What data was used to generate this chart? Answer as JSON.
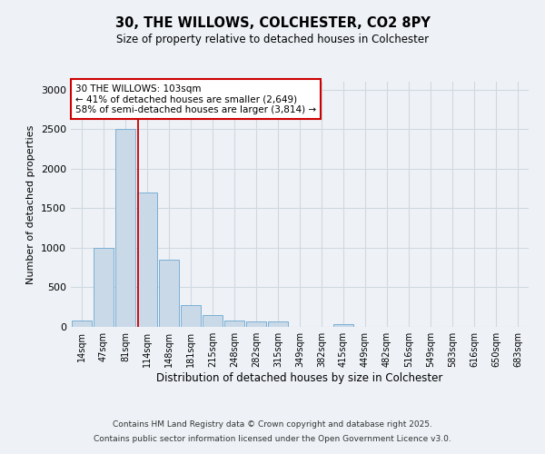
{
  "title_line1": "30, THE WILLOWS, COLCHESTER, CO2 8PY",
  "title_line2": "Size of property relative to detached houses in Colchester",
  "xlabel": "Distribution of detached houses by size in Colchester",
  "ylabel": "Number of detached properties",
  "categories": [
    "14sqm",
    "47sqm",
    "81sqm",
    "114sqm",
    "148sqm",
    "181sqm",
    "215sqm",
    "248sqm",
    "282sqm",
    "315sqm",
    "349sqm",
    "382sqm",
    "415sqm",
    "449sqm",
    "482sqm",
    "516sqm",
    "549sqm",
    "583sqm",
    "616sqm",
    "650sqm",
    "683sqm"
  ],
  "values": [
    75,
    1000,
    2500,
    1700,
    850,
    275,
    150,
    80,
    65,
    65,
    0,
    0,
    30,
    0,
    0,
    0,
    0,
    0,
    0,
    0,
    0
  ],
  "bar_color": "#c9d9e8",
  "bar_edge_color": "#7bafd4",
  "grid_color": "#d0d8e0",
  "background_color": "#eef2f7",
  "red_line_x": 2.58,
  "annotation_text": "30 THE WILLOWS: 103sqm\n← 41% of detached houses are smaller (2,649)\n58% of semi-detached houses are larger (3,814) →",
  "annotation_box_color": "#ffffff",
  "annotation_box_edgecolor": "#cc0000",
  "footer_line1": "Contains HM Land Registry data © Crown copyright and database right 2025.",
  "footer_line2": "Contains public sector information licensed under the Open Government Licence v3.0.",
  "ylim": [
    0,
    3100
  ],
  "yticks": [
    0,
    500,
    1000,
    1500,
    2000,
    2500,
    3000
  ]
}
